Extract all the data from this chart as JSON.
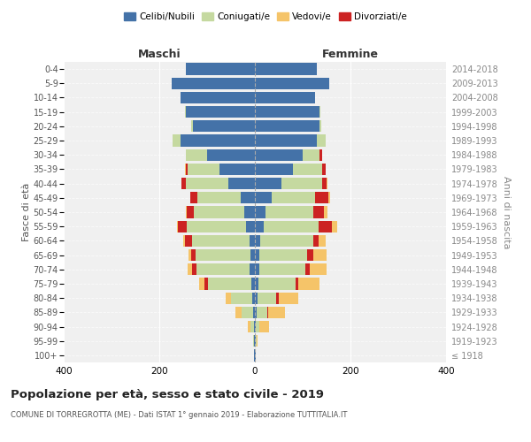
{
  "age_groups": [
    "100+",
    "95-99",
    "90-94",
    "85-89",
    "80-84",
    "75-79",
    "70-74",
    "65-69",
    "60-64",
    "55-59",
    "50-54",
    "45-49",
    "40-44",
    "35-39",
    "30-34",
    "25-29",
    "20-24",
    "15-19",
    "10-14",
    "5-9",
    "0-4"
  ],
  "birth_years": [
    "≤ 1918",
    "1919-1923",
    "1924-1928",
    "1929-1933",
    "1934-1938",
    "1939-1943",
    "1944-1948",
    "1949-1953",
    "1954-1958",
    "1959-1963",
    "1964-1968",
    "1969-1973",
    "1974-1978",
    "1979-1983",
    "1984-1988",
    "1989-1993",
    "1994-1998",
    "1999-2003",
    "2004-2008",
    "2009-2013",
    "2014-2018"
  ],
  "males": {
    "celibi": [
      1,
      1,
      2,
      3,
      5,
      8,
      12,
      10,
      12,
      18,
      22,
      30,
      55,
      75,
      100,
      155,
      130,
      145,
      155,
      175,
      145
    ],
    "coniugati": [
      0,
      2,
      8,
      25,
      45,
      90,
      110,
      115,
      120,
      125,
      105,
      90,
      90,
      65,
      45,
      18,
      4,
      2,
      0,
      0,
      0
    ],
    "vedovi": [
      0,
      0,
      5,
      12,
      12,
      10,
      8,
      5,
      3,
      2,
      2,
      1,
      1,
      2,
      0,
      0,
      0,
      0,
      0,
      0,
      0
    ],
    "divorziati": [
      0,
      0,
      0,
      0,
      0,
      8,
      10,
      8,
      15,
      18,
      15,
      15,
      8,
      5,
      0,
      0,
      0,
      0,
      0,
      0,
      0
    ]
  },
  "females": {
    "nubili": [
      1,
      1,
      2,
      4,
      5,
      8,
      10,
      10,
      12,
      18,
      22,
      35,
      55,
      80,
      100,
      130,
      135,
      135,
      125,
      155,
      130
    ],
    "coniugate": [
      0,
      2,
      8,
      22,
      40,
      78,
      95,
      100,
      110,
      115,
      100,
      90,
      85,
      60,
      35,
      18,
      4,
      2,
      0,
      0,
      0
    ],
    "vedove": [
      0,
      3,
      20,
      35,
      40,
      45,
      35,
      28,
      15,
      12,
      8,
      4,
      2,
      1,
      0,
      0,
      0,
      0,
      0,
      0,
      0
    ],
    "divorziate": [
      0,
      0,
      0,
      2,
      5,
      5,
      10,
      12,
      12,
      28,
      22,
      28,
      10,
      8,
      5,
      0,
      0,
      0,
      0,
      0,
      0
    ]
  },
  "colors": {
    "celibi_nubili": "#4472a8",
    "coniugati": "#c5d9a0",
    "vedovi": "#f5c469",
    "divorziati": "#cc2222"
  },
  "xlim": 400,
  "title": "Popolazione per età, sesso e stato civile - 2019",
  "subtitle": "COMUNE DI TORREGROTTA (ME) - Dati ISTAT 1° gennaio 2019 - Elaborazione TUTTITALIA.IT",
  "ylabel_left": "Fasce di età",
  "ylabel_right": "Anni di nascita",
  "xlabel_left": "Maschi",
  "xlabel_right": "Femmine",
  "legend_labels": [
    "Celibi/Nubili",
    "Coniugati/e",
    "Vedovi/e",
    "Divorziati/e"
  ],
  "bg_color": "#f0f0f0"
}
